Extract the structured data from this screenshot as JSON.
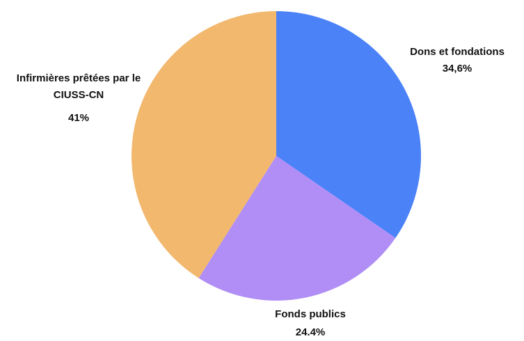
{
  "chart_data": {
    "type": "pie",
    "categories": [
      "Dons et fondations",
      "Fonds publics",
      "Infirmières prêtées par le CIUSS-CN"
    ],
    "values": [
      34.6,
      24.4,
      41
    ],
    "value_labels": [
      "34,6%",
      "24.4%",
      "41%"
    ],
    "colors": [
      "#4b82f8",
      "#b08ef5",
      "#f2b86e"
    ]
  }
}
